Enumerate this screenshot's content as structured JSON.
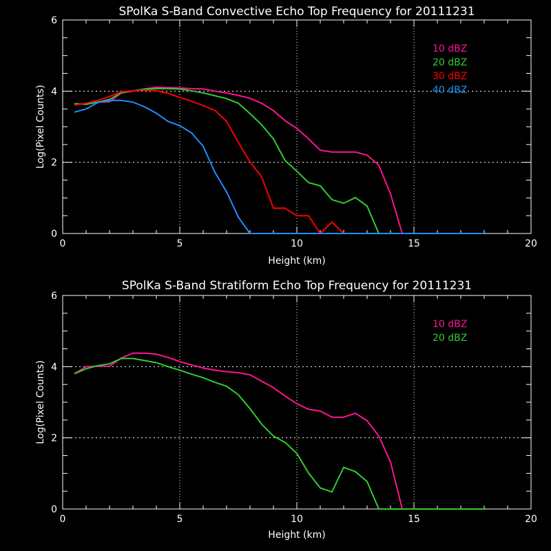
{
  "colors": {
    "c10": "#ff1493",
    "c20": "#33cc33",
    "c30": "#ff0000",
    "c40": "#1e90ff"
  },
  "chart_data": [
    {
      "type": "line",
      "title": "SPolKa S-Band Convective Echo Top Frequency for 20111231",
      "xlabel": "Height (km)",
      "ylabel": "Log(Pixel Counts)",
      "xlim": [
        0,
        20
      ],
      "ylim": [
        0,
        6
      ],
      "xticks": [
        "0",
        "5",
        "10",
        "15",
        "20"
      ],
      "yticks": [
        "0",
        "2",
        "4",
        "6"
      ],
      "grid": true,
      "legend_position": "top-right",
      "x": [
        0.5,
        1,
        1.5,
        2,
        2.5,
        3,
        3.5,
        4,
        4.5,
        5,
        5.5,
        6,
        6.5,
        7,
        7.5,
        8,
        8.5,
        9,
        9.5,
        10,
        10.5,
        11,
        11.5,
        12,
        12.5,
        13,
        13.5,
        14,
        14.5,
        15,
        15.5,
        16,
        16.5,
        17,
        17.5,
        18
      ],
      "series": [
        {
          "name": "10 dBZ",
          "color": "#ff1493",
          "values": [
            3.64,
            3.64,
            3.69,
            3.7,
            3.95,
            4.0,
            4.06,
            4.11,
            4.1,
            4.09,
            4.07,
            4.06,
            4.0,
            3.95,
            3.88,
            3.8,
            3.66,
            3.45,
            3.17,
            2.95,
            2.66,
            2.34,
            2.29,
            2.29,
            2.29,
            2.2,
            1.92,
            1.11,
            0,
            0,
            0,
            0,
            0,
            0,
            0,
            0
          ]
        },
        {
          "name": "20 dBZ",
          "color": "#33cc33",
          "values": [
            3.65,
            3.63,
            3.69,
            3.77,
            3.95,
            4.01,
            4.06,
            4.07,
            4.07,
            4.06,
            4.01,
            3.95,
            3.87,
            3.79,
            3.66,
            3.37,
            3.05,
            2.66,
            2.05,
            1.75,
            1.43,
            1.34,
            0.95,
            0.85,
            1.01,
            0.77,
            0,
            0,
            0,
            0,
            0,
            0,
            0,
            0,
            0,
            0
          ]
        },
        {
          "name": "30 dBZ",
          "color": "#ff0000",
          "values": [
            3.61,
            3.66,
            3.74,
            3.85,
            3.98,
            4.01,
            4.03,
            4.01,
            3.94,
            3.82,
            3.72,
            3.59,
            3.46,
            3.15,
            2.56,
            2.01,
            1.59,
            0.71,
            0.71,
            0.5,
            0.5,
            0,
            0.32,
            0,
            0,
            0,
            0,
            0,
            0,
            0,
            0,
            0,
            0,
            0,
            0,
            0
          ]
        },
        {
          "name": "40 dBZ",
          "color": "#1e90ff",
          "values": [
            3.41,
            3.5,
            3.68,
            3.74,
            3.74,
            3.69,
            3.56,
            3.38,
            3.15,
            3.03,
            2.83,
            2.45,
            1.72,
            1.17,
            0.46,
            0,
            0,
            0,
            0,
            0,
            0,
            0,
            0,
            0,
            0,
            0,
            0,
            0,
            0,
            0,
            0,
            0,
            0,
            0,
            0,
            0
          ]
        }
      ]
    },
    {
      "type": "line",
      "title": "SPolKa S-Band Stratiform Echo Top Frequency for 20111231",
      "xlabel": "Height (km)",
      "ylabel": "Log(Pixel Counts)",
      "xlim": [
        0,
        20
      ],
      "ylim": [
        0,
        6
      ],
      "xticks": [
        "0",
        "5",
        "10",
        "15",
        "20"
      ],
      "yticks": [
        "0",
        "2",
        "4",
        "6"
      ],
      "grid": true,
      "legend_position": "top-right",
      "x": [
        0.5,
        1,
        1.5,
        2,
        2.5,
        3,
        3.5,
        4,
        4.5,
        5,
        5.5,
        6,
        6.5,
        7,
        7.5,
        8,
        8.5,
        9,
        9.5,
        10,
        10.5,
        11,
        11.5,
        12,
        12.5,
        13,
        13.5,
        14,
        14.5,
        15,
        15.5,
        16,
        16.5,
        17,
        17.5,
        18
      ],
      "series": [
        {
          "name": "10 dBZ",
          "color": "#ff1493",
          "values": [
            3.8,
            4.0,
            4.01,
            4.01,
            4.24,
            4.38,
            4.38,
            4.35,
            4.26,
            4.14,
            4.05,
            3.96,
            3.9,
            3.86,
            3.83,
            3.77,
            3.59,
            3.41,
            3.17,
            2.96,
            2.8,
            2.75,
            2.58,
            2.58,
            2.69,
            2.48,
            2.05,
            1.32,
            0,
            0,
            0,
            0,
            0,
            0,
            0,
            0
          ]
        },
        {
          "name": "20 dBZ",
          "color": "#33cc33",
          "values": [
            3.8,
            3.94,
            4.03,
            4.08,
            4.23,
            4.23,
            4.17,
            4.11,
            4.0,
            3.9,
            3.79,
            3.69,
            3.56,
            3.45,
            3.21,
            2.82,
            2.38,
            2.05,
            1.87,
            1.56,
            1.01,
            0.59,
            0.48,
            1.17,
            1.05,
            0.77,
            0,
            0,
            0,
            0,
            0,
            0,
            0,
            0,
            0,
            0
          ]
        }
      ]
    }
  ]
}
